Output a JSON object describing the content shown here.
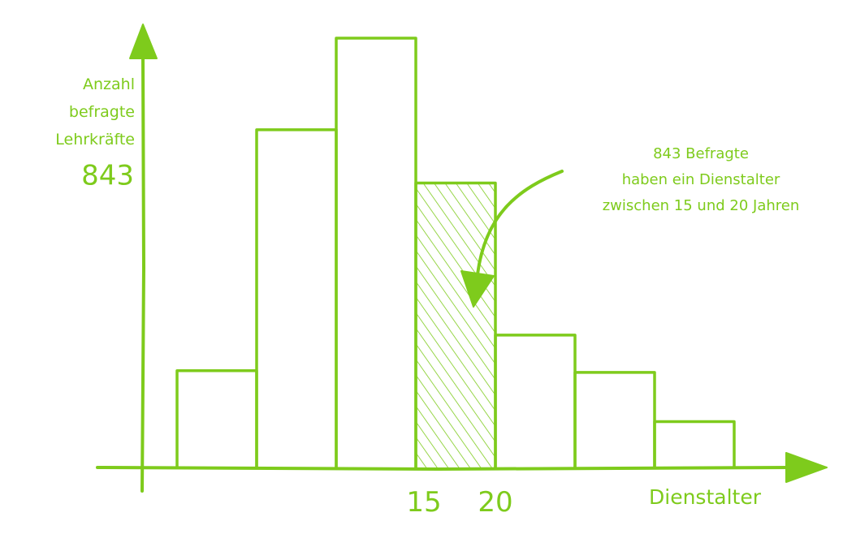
{
  "colors": {
    "accent": "#7ecb1c",
    "background": "#ffffff"
  },
  "chart_data": {
    "type": "bar",
    "bins": [
      {
        "start": null,
        "end": null,
        "value": 290,
        "highlighted": false
      },
      {
        "start": null,
        "end": null,
        "value": 1000,
        "highlighted": false
      },
      {
        "start": null,
        "end": null,
        "value": 1270,
        "highlighted": false
      },
      {
        "start": 15,
        "end": 20,
        "value": 843,
        "highlighted": true
      },
      {
        "start": null,
        "end": null,
        "value": 395,
        "highlighted": false
      },
      {
        "start": null,
        "end": null,
        "value": 285,
        "highlighted": false
      },
      {
        "start": null,
        "end": null,
        "value": 140,
        "highlighted": false
      }
    ],
    "ylabel_lines": [
      "Anzahl",
      "befragte",
      "Lehrkräfte"
    ],
    "y_tick": {
      "value": 843,
      "label": "843"
    },
    "x_ticks": [
      {
        "value": 15,
        "label": "15"
      },
      {
        "value": 20,
        "label": "20"
      }
    ],
    "xlabel": "Dienstalter",
    "annotation_lines": [
      "843 Befragte",
      "haben ein Dienstalter",
      "zwischen 15 und 20 Jahren"
    ],
    "ylim": [
      0,
      1270
    ],
    "grid": false,
    "legend": "none"
  }
}
